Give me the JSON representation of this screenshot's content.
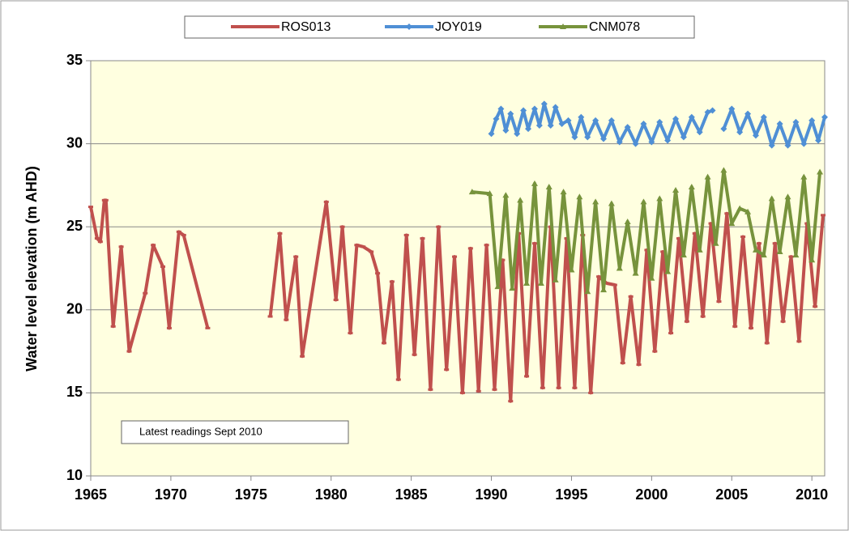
{
  "chart_data": {
    "type": "line",
    "y_label": "Water level elevation  (m AHD)",
    "annotation": "Latest readings  Sept 2010",
    "xlim": [
      1965,
      2010.8
    ],
    "xticks": [
      1965,
      1970,
      1975,
      1980,
      1985,
      1990,
      1995,
      2000,
      2005,
      2010
    ],
    "ylim": [
      10,
      35
    ],
    "yticks": [
      10,
      15,
      20,
      25,
      30,
      35
    ],
    "grid": true,
    "legend": "top",
    "series": [
      {
        "name": "ROS013",
        "color": "#c0504d",
        "marker": "dash",
        "x": [
          1965.0,
          1965.4,
          1965.6,
          1965.85,
          1965.95,
          1966.4,
          1966.9,
          1967.4,
          1968.4,
          1968.9,
          1969.5,
          1969.9,
          1970.5,
          1970.8,
          1972.3,
          1974.0,
          1976.2,
          1976.8,
          1977.2,
          1977.8,
          1978.2,
          1979.7,
          1980.3,
          1980.7,
          1981.2,
          1981.6,
          1982.0,
          1982.5,
          1982.9,
          1983.3,
          1983.8,
          1984.2,
          1984.7,
          1985.2,
          1985.7,
          1986.2,
          1986.7,
          1987.2,
          1987.7,
          1988.2,
          1988.7,
          1989.2,
          1989.7,
          1990.2,
          1990.7,
          1991.2,
          1991.7,
          1992.2,
          1992.7,
          1993.2,
          1993.7,
          1994.2,
          1994.7,
          1995.2,
          1995.7,
          1996.2,
          1996.7,
          1997.2,
          1997.7,
          1998.2,
          1998.7,
          1999.2,
          1999.7,
          2000.2,
          2000.7,
          2001.2,
          2001.7,
          2002.2,
          2002.7,
          2003.2,
          2003.7,
          2004.2,
          2004.7,
          2005.2,
          2005.7,
          2006.2,
          2006.7,
          2007.2,
          2007.7,
          2008.2,
          2008.7,
          2009.2,
          2009.7,
          2010.2,
          2010.7
        ],
        "values": [
          26.2,
          24.3,
          24.1,
          26.6,
          26.6,
          19.0,
          23.8,
          17.5,
          21.0,
          23.9,
          22.6,
          18.9,
          24.7,
          24.5,
          18.9,
          null,
          19.6,
          24.6,
          19.4,
          23.2,
          17.2,
          26.5,
          20.6,
          25.0,
          18.6,
          23.9,
          23.8,
          23.5,
          22.2,
          18.0,
          21.7,
          15.8,
          24.5,
          17.3,
          24.3,
          15.2,
          25.0,
          16.4,
          23.2,
          15.0,
          23.7,
          15.1,
          23.9,
          15.2,
          23.0,
          14.5,
          24.6,
          16.0,
          24.0,
          15.3,
          25.0,
          15.3,
          24.3,
          15.3,
          24.5,
          15.0,
          22.0,
          21.6,
          21.5,
          16.8,
          20.8,
          16.7,
          23.6,
          17.5,
          23.5,
          18.6,
          24.3,
          19.3,
          24.6,
          19.6,
          25.2,
          20.5,
          25.8,
          19.0,
          24.4,
          18.9,
          24.0,
          18.0,
          24.0,
          19.3,
          23.2,
          18.1,
          25.2,
          20.2,
          25.7
        ]
      },
      {
        "name": "JOY019",
        "color": "#4f8fd5",
        "marker": "diamond",
        "x": [
          1990.0,
          1990.3,
          1990.6,
          1990.9,
          1991.2,
          1991.6,
          1992.0,
          1992.3,
          1992.7,
          1993.0,
          1993.3,
          1993.7,
          1994.0,
          1994.4,
          1994.8,
          1995.2,
          1995.6,
          1996.0,
          1996.5,
          1997.0,
          1997.5,
          1998.0,
          1998.5,
          1999.0,
          1999.5,
          2000.0,
          2000.5,
          2001.0,
          2001.5,
          2002.0,
          2002.5,
          2003.0,
          2003.5,
          2003.8,
          2004.1,
          2004.5,
          2005.0,
          2005.5,
          2006.0,
          2006.5,
          2007.0,
          2007.5,
          2008.0,
          2008.5,
          2009.0,
          2009.5,
          2010.0,
          2010.4,
          2010.8
        ],
        "values": [
          30.6,
          31.5,
          32.1,
          30.8,
          31.8,
          30.6,
          32.0,
          30.9,
          32.1,
          31.1,
          32.4,
          31.1,
          32.2,
          31.2,
          31.4,
          30.4,
          31.6,
          30.4,
          31.4,
          30.3,
          31.4,
          30.1,
          31.0,
          30.0,
          31.2,
          30.1,
          31.3,
          30.2,
          31.5,
          30.4,
          31.6,
          30.7,
          31.9,
          32.0,
          null,
          30.9,
          32.1,
          30.7,
          31.8,
          30.5,
          31.6,
          29.9,
          31.2,
          29.9,
          31.3,
          30.0,
          31.4,
          30.2,
          31.6
        ]
      },
      {
        "name": "CNM078",
        "color": "#77933c",
        "marker": "triangle",
        "x": [
          1988.8,
          1989.9,
          1990.4,
          1990.9,
          1991.3,
          1991.8,
          1992.2,
          1992.7,
          1993.1,
          1993.6,
          1994.0,
          1994.5,
          1995.0,
          1995.5,
          1996.0,
          1996.5,
          1997.0,
          1997.5,
          1998.0,
          1998.5,
          1999.0,
          1999.5,
          2000.0,
          2000.5,
          2001.0,
          2001.5,
          2002.0,
          2002.5,
          2003.0,
          2003.5,
          2004.0,
          2004.5,
          2005.0,
          2005.5,
          2006.0,
          2006.5,
          2007.0,
          2007.5,
          2008.0,
          2008.5,
          2009.0,
          2009.5,
          2010.0,
          2010.5
        ],
        "values": [
          27.1,
          27.0,
          21.4,
          26.9,
          21.3,
          26.6,
          21.6,
          27.6,
          21.6,
          27.4,
          21.8,
          27.1,
          22.4,
          26.8,
          21.1,
          26.5,
          21.2,
          26.4,
          22.5,
          25.3,
          22.2,
          26.5,
          21.9,
          26.7,
          22.3,
          27.2,
          23.3,
          27.4,
          23.6,
          28.0,
          24.0,
          28.4,
          25.2,
          26.1,
          25.9,
          23.6,
          23.3,
          26.7,
          23.5,
          26.8,
          23.3,
          28.0,
          23.0,
          28.3
        ]
      }
    ]
  }
}
